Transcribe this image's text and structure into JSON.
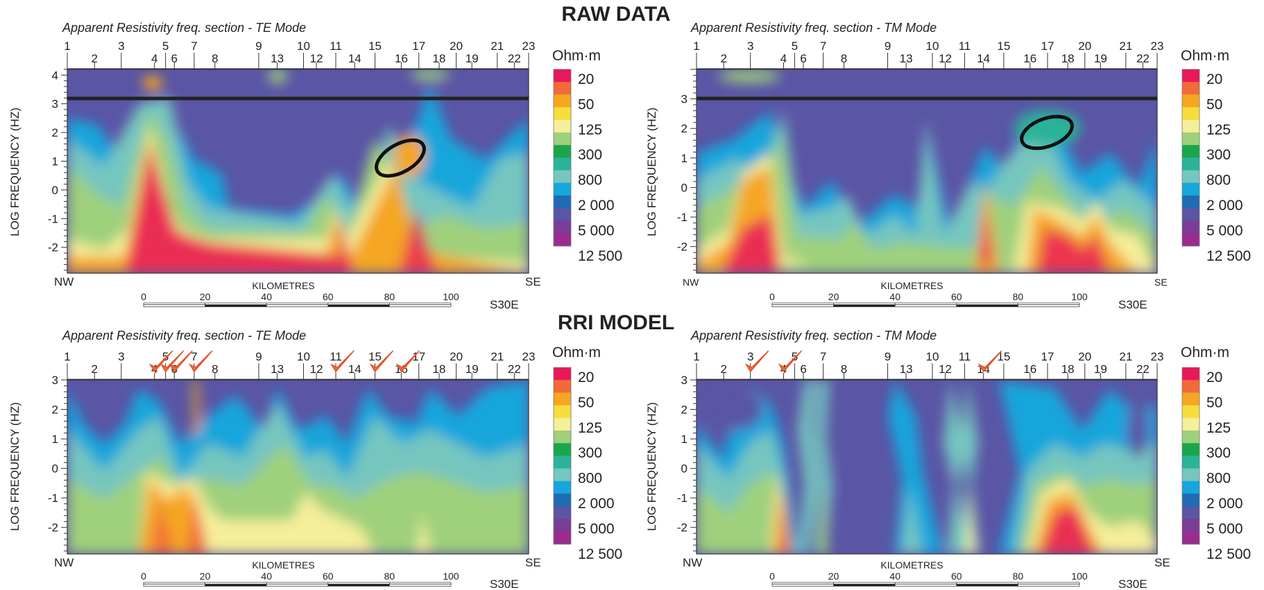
{
  "headings": {
    "raw": "RAW DATA",
    "model": "RRI MODEL"
  },
  "legend": {
    "unit": "Ohm·m",
    "labels": [
      "20",
      "50",
      "125",
      "300",
      "800",
      "2 000",
      "5 000",
      "12 500"
    ],
    "colors": [
      "#e8185a",
      "#f26a3a",
      "#f5a623",
      "#f7dd3c",
      "#f5ee9a",
      "#9fd07c",
      "#1aa64b",
      "#2bb39a",
      "#76c6c0",
      "#16a6dc",
      "#1f6bb4",
      "#5a55a5",
      "#7a3d96",
      "#9c2b8f"
    ]
  },
  "scalebar": {
    "label": "KILOMETRES",
    "ticks": [
      "0",
      "20",
      "40",
      "60",
      "80",
      "100"
    ],
    "direction": "S30E"
  },
  "chart_data": [
    {
      "type": "heatmap",
      "title": "Apparent Resistivity freq. section - TE Mode",
      "ylabel": "LOG FREQUENCY (HZ)",
      "ylim": [
        -2.9,
        4.2
      ],
      "y_ticks": [
        "4",
        "3",
        "2",
        "1",
        "0",
        "-1",
        "-2"
      ],
      "stations": [
        "1",
        "2",
        "3",
        "4",
        "5",
        "6",
        "7",
        "8",
        "9",
        "13",
        "10",
        "12",
        "11",
        "14",
        "15",
        "16",
        "17",
        "18",
        "20",
        "19",
        "21",
        "22",
        "23"
      ],
      "left_label": "NW",
      "right_label": "SE",
      "reference_line_y": 3,
      "ellipse": {
        "x": 0.72,
        "y": 1.0
      },
      "checkmarks": []
    },
    {
      "type": "heatmap",
      "title": "Apparent Resistivity freq. section - TM Mode",
      "ylabel": "LOG FREQUENCY (HZ)",
      "ylim": [
        -2.9,
        4.0
      ],
      "y_ticks": [
        "3",
        "2",
        "1",
        "0",
        "-1",
        "-2"
      ],
      "stations": [
        "1",
        "2",
        "3",
        "4",
        "5",
        "6",
        "7",
        "8",
        "9",
        "13",
        "10",
        "12",
        "11",
        "14",
        "15",
        "16",
        "17",
        "18",
        "20",
        "19",
        "21",
        "22",
        "23"
      ],
      "left_label": "NW",
      "right_label": "SE",
      "reference_line_y": 3,
      "ellipse": {
        "x": 0.76,
        "y": 1.9
      },
      "checkmarks": []
    },
    {
      "type": "heatmap",
      "title": "Apparent Resistivity freq. section - TE Mode",
      "ylabel": "LOG FREQUENCY (HZ)",
      "ylim": [
        -2.9,
        3.0
      ],
      "y_ticks": [
        "3",
        "2",
        "1",
        "0",
        "-1",
        "-2"
      ],
      "stations": [
        "1",
        "2",
        "3",
        "4",
        "5",
        "6",
        "7",
        "8",
        "9",
        "13",
        "10",
        "12",
        "11",
        "14",
        "15",
        "16",
        "17",
        "18",
        "20",
        "19",
        "21",
        "22",
        "23"
      ],
      "left_label": "NW",
      "right_label": "SE",
      "checkmarks": [
        "4",
        "5",
        "6",
        "7",
        "11",
        "15",
        "16"
      ]
    },
    {
      "type": "heatmap",
      "title": "Apparent Resistivity freq. section - TM Mode",
      "ylabel": "LOG FREQUENCY (HZ)",
      "ylim": [
        -2.9,
        3.0
      ],
      "y_ticks": [
        "3",
        "2",
        "1",
        "0",
        "-1",
        "-2"
      ],
      "stations": [
        "1",
        "2",
        "3",
        "4",
        "5",
        "6",
        "7",
        "8",
        "9",
        "13",
        "10",
        "12",
        "11",
        "14",
        "15",
        "16",
        "17",
        "18",
        "20",
        "19",
        "21",
        "22",
        "23"
      ],
      "left_label": "NW",
      "right_label": "SE",
      "checkmarks": [
        "3",
        "4",
        "14"
      ]
    }
  ]
}
